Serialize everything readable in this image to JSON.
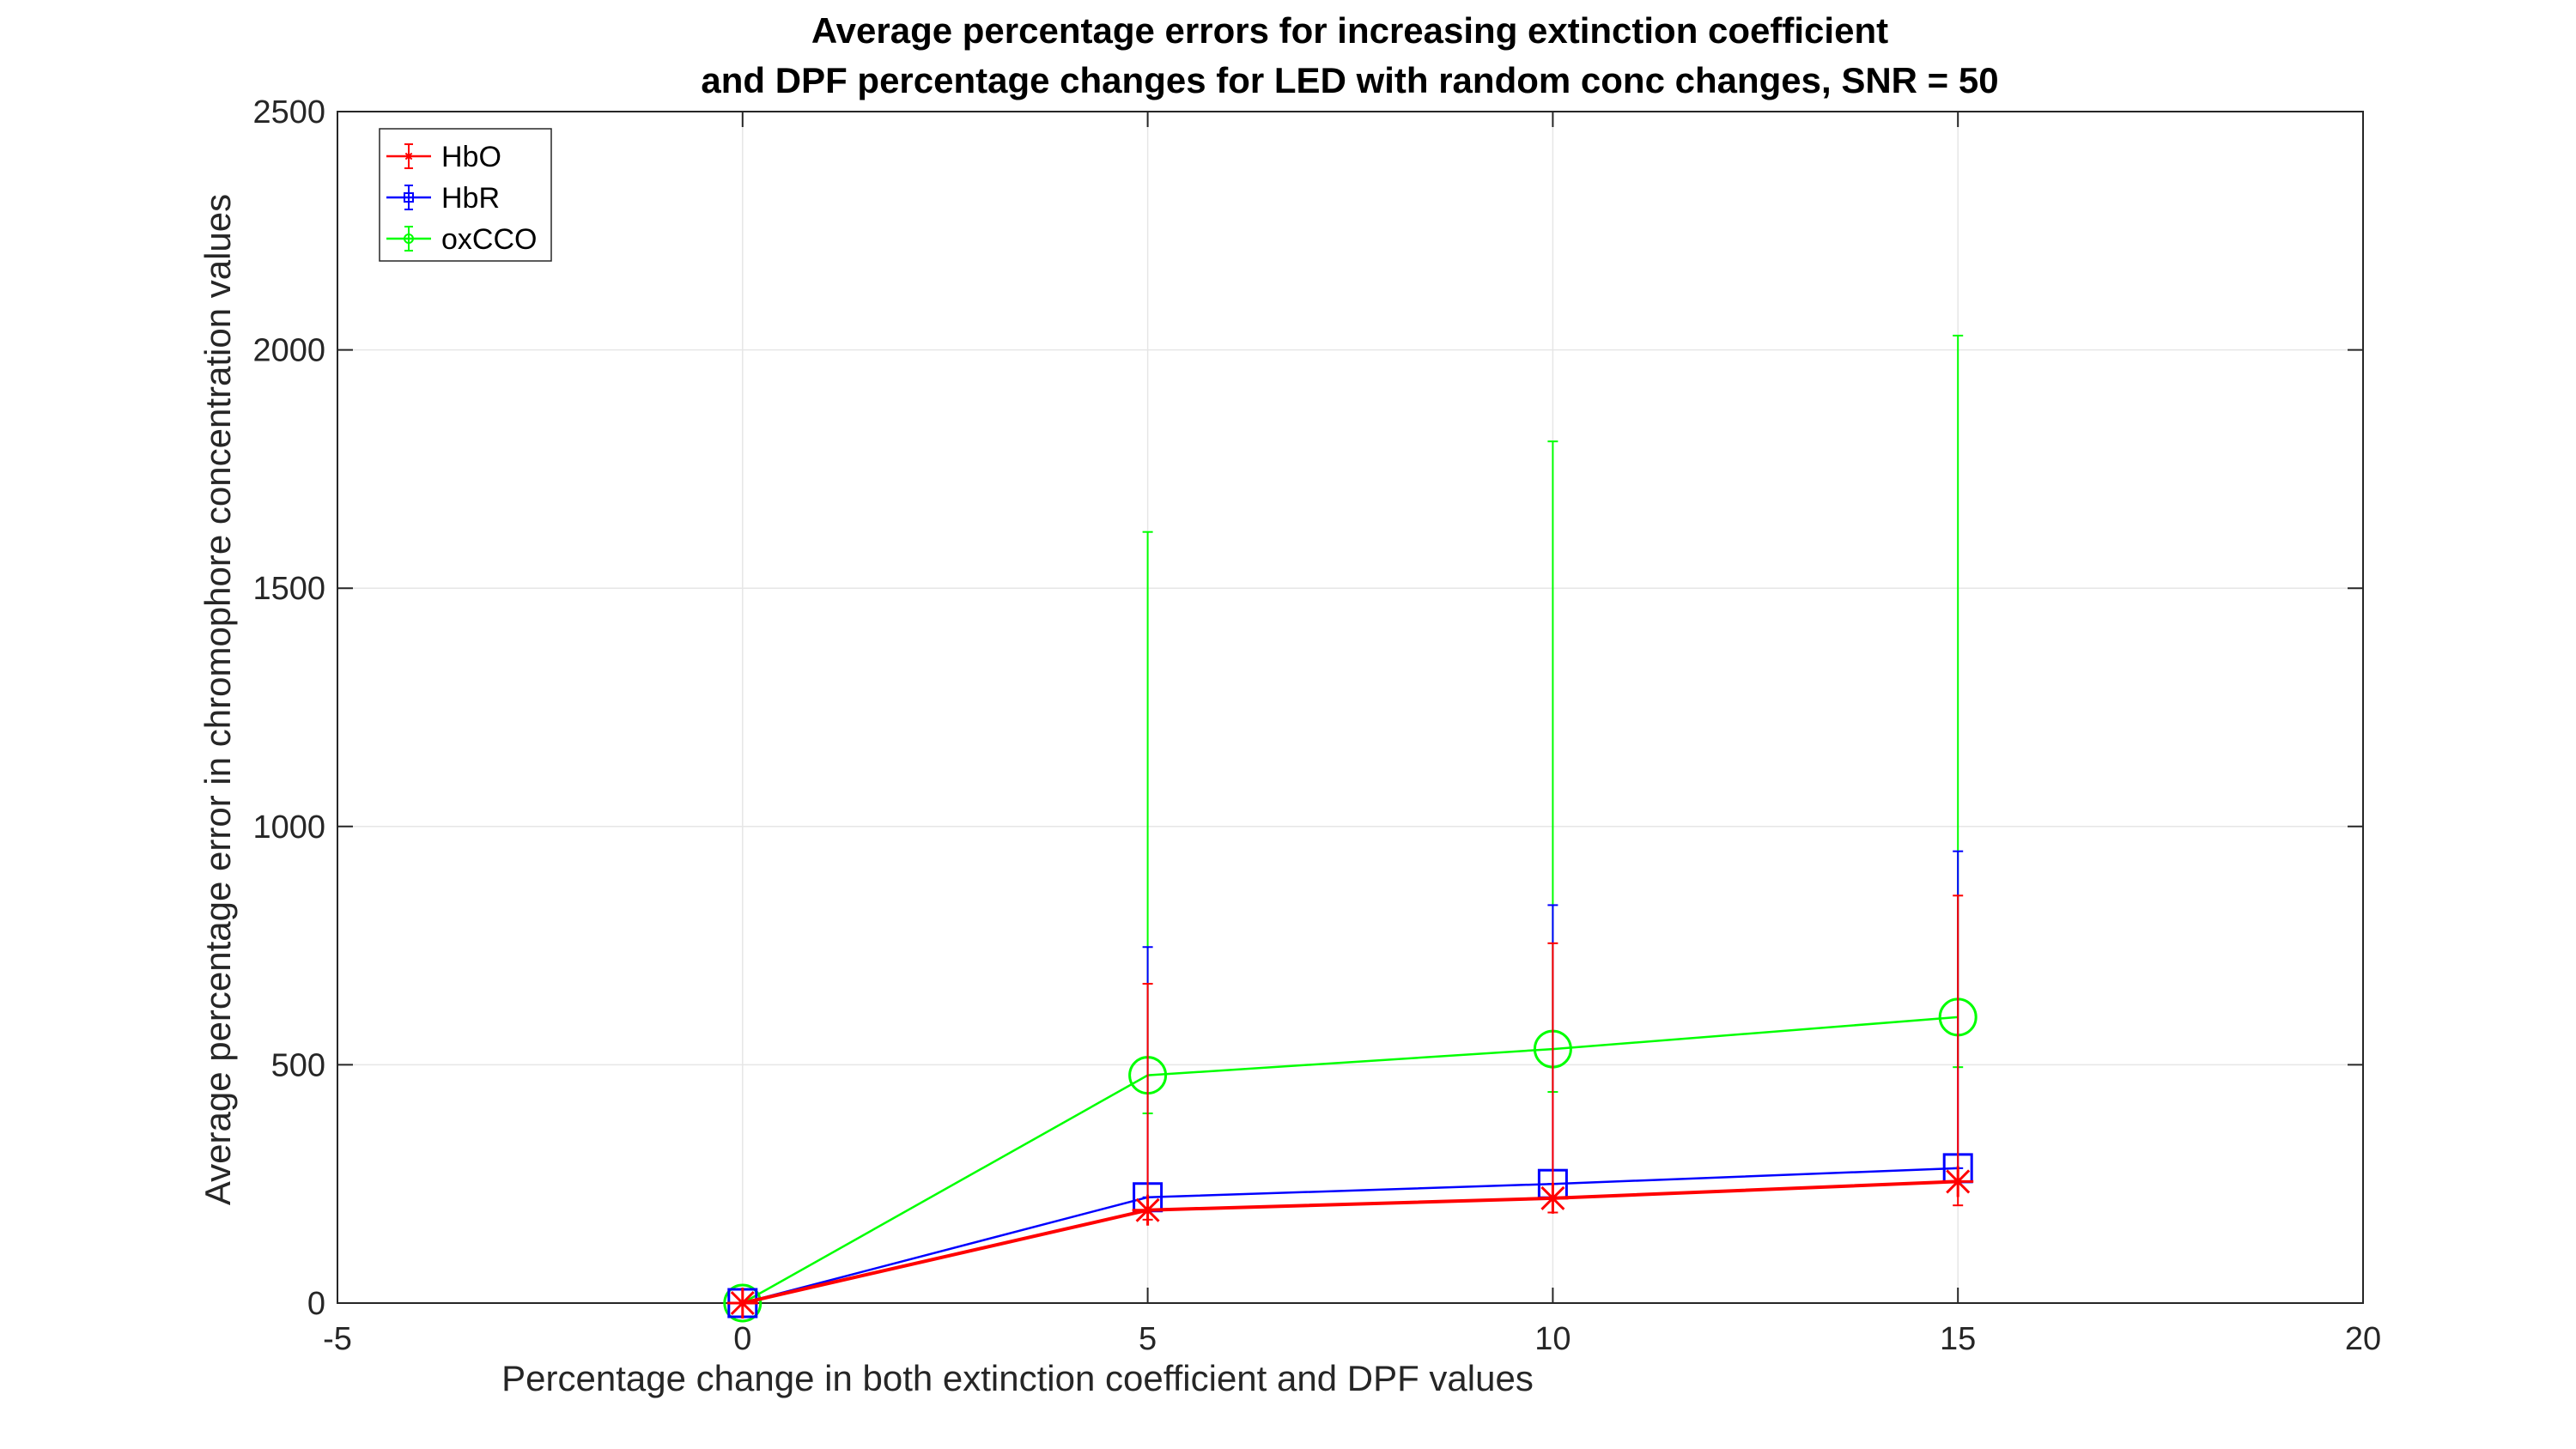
{
  "chart_data": {
    "type": "line",
    "title_lines": [
      "Average percentage errors for increasing extinction coefficient",
      "and DPF percentage changes for LED with random conc changes, SNR = 50"
    ],
    "xlabel": "Percentage change in both extinction coefficient and DPF values",
    "ylabel": "Average percentage error in chromophore concentration values",
    "xlim": [
      -5,
      20
    ],
    "ylim": [
      0,
      2500
    ],
    "xticks": [
      -5,
      0,
      5,
      10,
      15,
      20
    ],
    "yticks": [
      0,
      500,
      1000,
      1500,
      2000,
      2500
    ],
    "grid": true,
    "legend_position": "top-left",
    "x": [
      0,
      5,
      10,
      15
    ],
    "series": [
      {
        "name": "HbO",
        "color": "#ff0000",
        "marker": "star",
        "values": [
          0,
          195,
          220,
          255
        ],
        "error_low": [
          0,
          20,
          30,
          50
        ],
        "error_high": [
          0,
          475,
          535,
          600
        ]
      },
      {
        "name": "HbR",
        "color": "#0000ff",
        "marker": "square",
        "values": [
          0,
          222,
          250,
          283
        ],
        "error_low": [
          0,
          0,
          0,
          0
        ],
        "error_high": [
          0,
          525,
          585,
          665
        ]
      },
      {
        "name": "oxCCO",
        "color": "#00ff00",
        "marker": "circle",
        "values": [
          0,
          478,
          533,
          600
        ],
        "error_low": [
          0,
          80,
          90,
          105
        ],
        "error_high": [
          0,
          1140,
          1275,
          1430
        ]
      }
    ]
  }
}
